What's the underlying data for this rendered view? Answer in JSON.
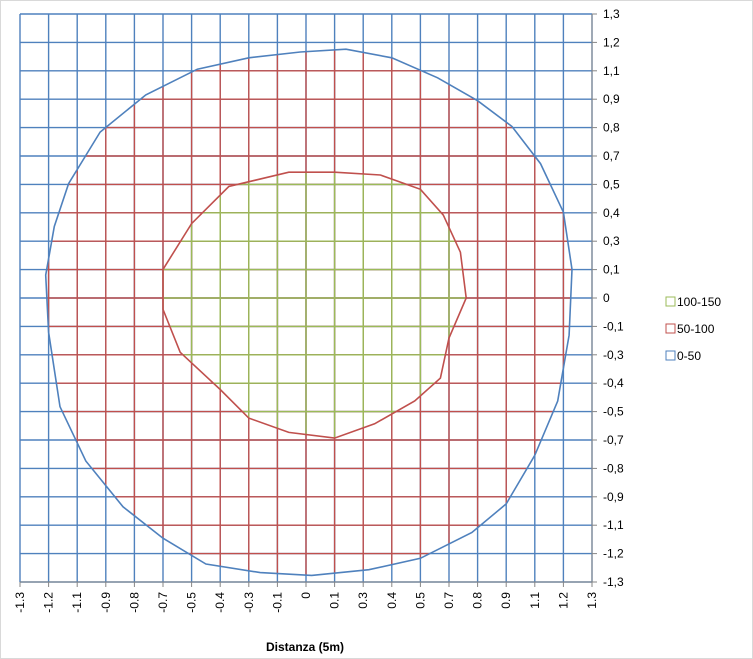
{
  "chart_data": {
    "type": "contour",
    "title": "",
    "xlabel": "Distanza (5m)",
    "ylabel": "",
    "x_ticks": [
      "-1.3",
      "-1.2",
      "-1.1",
      "-0.9",
      "-0.8",
      "-0.7",
      "-0.5",
      "-0.4",
      "-0.3",
      "-0.1",
      "0",
      "0.1",
      "0.3",
      "0.4",
      "0.5",
      "0.7",
      "0.8",
      "0.9",
      "1.1",
      "1.2",
      "1.3"
    ],
    "y_ticks": [
      "1,3",
      "1,2",
      "1,1",
      "0,9",
      "0,8",
      "0,7",
      "0,5",
      "0,4",
      "0,3",
      "0,1",
      "0",
      "-0,1",
      "-0,3",
      "-0,4",
      "-0,5",
      "-0,7",
      "-0,8",
      "-0,9",
      "-1,1",
      "-1,2",
      "-1,3"
    ],
    "series": [
      {
        "name": "100-150",
        "color": "#9bbb59",
        "boundary": [
          [
            -0.06,
            0.44
          ],
          [
            0.1,
            0.44
          ],
          [
            0.26,
            0.43
          ],
          [
            0.4,
            0.38
          ],
          [
            0.48,
            0.29
          ],
          [
            0.54,
            0.16
          ],
          [
            0.56,
            0.0
          ],
          [
            0.5,
            -0.14
          ],
          [
            0.47,
            -0.28
          ],
          [
            0.38,
            -0.36
          ],
          [
            0.24,
            -0.44
          ],
          [
            0.1,
            -0.49
          ],
          [
            -0.06,
            -0.47
          ],
          [
            -0.2,
            -0.42
          ],
          [
            -0.3,
            -0.32
          ],
          [
            -0.44,
            -0.19
          ],
          [
            -0.5,
            -0.04
          ],
          [
            -0.5,
            0.1
          ],
          [
            -0.4,
            0.26
          ],
          [
            -0.27,
            0.39
          ],
          [
            -0.06,
            0.44
          ]
        ]
      },
      {
        "name": "50-100",
        "color": "#c0504d",
        "boundary": [
          [
            -0.02,
            0.86
          ],
          [
            0.14,
            0.87
          ],
          [
            0.3,
            0.84
          ],
          [
            0.46,
            0.77
          ],
          [
            0.6,
            0.69
          ],
          [
            0.72,
            0.6
          ],
          [
            0.82,
            0.47
          ],
          [
            0.9,
            0.3
          ],
          [
            0.93,
            0.1
          ],
          [
            0.92,
            -0.13
          ],
          [
            0.88,
            -0.36
          ],
          [
            0.8,
            -0.55
          ],
          [
            0.7,
            -0.72
          ],
          [
            0.58,
            -0.82
          ],
          [
            0.4,
            -0.91
          ],
          [
            0.22,
            -0.95
          ],
          [
            0.02,
            -0.97
          ],
          [
            -0.16,
            -0.96
          ],
          [
            -0.35,
            -0.93
          ],
          [
            -0.5,
            -0.84
          ],
          [
            -0.64,
            -0.73
          ],
          [
            -0.77,
            -0.57
          ],
          [
            -0.86,
            -0.38
          ],
          [
            -0.9,
            -0.12
          ],
          [
            -0.91,
            0.08
          ],
          [
            -0.88,
            0.25
          ],
          [
            -0.83,
            0.4
          ],
          [
            -0.72,
            0.58
          ],
          [
            -0.56,
            0.71
          ],
          [
            -0.38,
            0.8
          ],
          [
            -0.2,
            0.84
          ],
          [
            -0.02,
            0.86
          ]
        ]
      },
      {
        "name": "0-50",
        "color": "#4f81bd",
        "boundary": []
      }
    ],
    "grid": true,
    "legend_position": "right"
  }
}
